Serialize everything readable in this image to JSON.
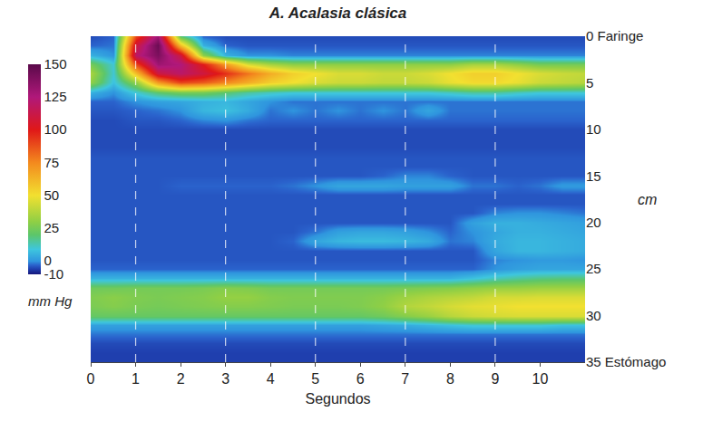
{
  "chart_data": {
    "type": "heatmap",
    "title": "A. Acalasia clásica",
    "x_label": "Segundos",
    "y_label": "cm",
    "colorbar_label": "mm Hg",
    "x": [
      0,
      0.5,
      1,
      1.5,
      2,
      2.5,
      3,
      3.5,
      4,
      4.5,
      5,
      5.5,
      6,
      6.5,
      7,
      7.5,
      8,
      8.5,
      9,
      9.5,
      10,
      10.5,
      11
    ],
    "y": [
      0,
      1,
      2,
      3,
      4,
      5,
      6,
      7,
      8,
      9,
      10,
      11,
      12,
      13,
      14,
      15,
      16,
      17,
      18,
      19,
      20,
      21,
      22,
      23,
      24,
      25,
      26,
      27,
      28,
      29,
      30,
      31,
      32,
      33,
      34,
      35
    ],
    "z": [
      [
        -5,
        -3,
        90,
        130,
        20,
        -3,
        -5,
        -5,
        -5,
        -5,
        -5,
        -5,
        -5,
        -5,
        -5,
        -5,
        -5,
        -5,
        -5,
        -5,
        -5,
        -5,
        -5
      ],
      [
        -3,
        -2,
        110,
        145,
        60,
        5,
        -3,
        -4,
        -4,
        -4,
        -4,
        -4,
        -4,
        -4,
        -4,
        -4,
        -4,
        -4,
        -4,
        -4,
        -4,
        -4,
        -4
      ],
      [
        5,
        0,
        120,
        140,
        110,
        30,
        5,
        0,
        0,
        -1,
        -1,
        -1,
        -1,
        -1,
        -1,
        -1,
        -1,
        -1,
        -1,
        -1,
        -1,
        -1,
        -1
      ],
      [
        25,
        10,
        90,
        130,
        125,
        100,
        70,
        45,
        35,
        30,
        30,
        30,
        30,
        30,
        30,
        30,
        30,
        35,
        35,
        30,
        25,
        25,
        25
      ],
      [
        35,
        10,
        60,
        110,
        120,
        110,
        95,
        80,
        65,
        55,
        50,
        45,
        45,
        42,
        42,
        45,
        50,
        55,
        55,
        50,
        45,
        42,
        40
      ],
      [
        30,
        8,
        30,
        70,
        90,
        85,
        75,
        65,
        55,
        50,
        45,
        42,
        42,
        40,
        40,
        42,
        48,
        52,
        52,
        48,
        42,
        40,
        38
      ],
      [
        5,
        0,
        10,
        20,
        25,
        25,
        20,
        15,
        12,
        10,
        10,
        10,
        10,
        10,
        10,
        10,
        12,
        15,
        15,
        12,
        10,
        10,
        10
      ],
      [
        -3,
        -3,
        0,
        2,
        3,
        5,
        6,
        3,
        0,
        -2,
        -2,
        -2,
        -2,
        -2,
        -2,
        -2,
        -2,
        -2,
        -2,
        -2,
        -2,
        -2,
        -2
      ],
      [
        -4,
        -4,
        -3,
        -2,
        0,
        6,
        8,
        4,
        -2,
        0,
        -2,
        0,
        -2,
        0,
        -2,
        3,
        -2,
        -2,
        -2,
        -2,
        -2,
        -2,
        -2
      ],
      [
        -5,
        -5,
        -4,
        -4,
        -3,
        -1,
        0,
        -2,
        -3,
        -3,
        -3,
        -3,
        -3,
        -3,
        -3,
        -3,
        -3,
        -3,
        -3,
        -3,
        -3,
        -3,
        -3
      ],
      [
        -5,
        -5,
        -5,
        -5,
        -5,
        -5,
        -5,
        -5,
        -5,
        -5,
        -5,
        -5,
        -5,
        -5,
        -5,
        -5,
        -5,
        -5,
        -5,
        -5,
        -5,
        -5,
        -5
      ],
      [
        -5,
        -5,
        -5,
        -5,
        -5,
        -5,
        -5,
        -5,
        -5,
        -5,
        -5,
        -5,
        -5,
        -5,
        -5,
        -5,
        -5,
        -5,
        -5,
        -5,
        -5,
        -5,
        -5
      ],
      [
        -5,
        -5,
        -5,
        -5,
        -5,
        -5,
        -5,
        -5,
        -5,
        -5,
        -5,
        -5,
        -5,
        -5,
        -5,
        -5,
        -5,
        -5,
        -5,
        -5,
        -5,
        -5,
        -5
      ],
      [
        -4,
        -4,
        -4,
        -4,
        -4,
        -4,
        -4,
        -4,
        -4,
        -4,
        -4,
        -4,
        -4,
        -4,
        -4,
        -4,
        -4,
        -4,
        -4,
        -4,
        -4,
        -4,
        -4
      ],
      [
        -4,
        -4,
        -4,
        -4,
        -4,
        -4,
        -4,
        -4,
        -4,
        -4,
        -4,
        -4,
        -4,
        -4,
        -4,
        -4,
        -4,
        -4,
        -4,
        -4,
        -4,
        -4,
        -4
      ],
      [
        -4,
        -4,
        -4,
        -4,
        -4,
        -4,
        -4,
        -4,
        -4,
        -4,
        -4,
        -4,
        -4,
        -3,
        -1,
        -1,
        -3,
        -4,
        -4,
        -4,
        -4,
        -4,
        -4
      ],
      [
        -4,
        -4,
        -4,
        -4,
        -3,
        -3,
        -3,
        -3,
        -3,
        -2,
        0,
        3,
        3,
        3,
        2,
        2,
        2,
        -2,
        -2,
        -3,
        -2,
        1,
        1
      ],
      [
        -4,
        -4,
        -4,
        -4,
        -4,
        -4,
        -4,
        -4,
        -4,
        -4,
        -4,
        -4,
        -4,
        -4,
        -4,
        -4,
        -4,
        -4,
        -4,
        -4,
        -4,
        -4,
        -4
      ],
      [
        -4,
        -4,
        -4,
        -4,
        -4,
        -4,
        -4,
        -4,
        -4,
        -4,
        -4,
        -4,
        -4,
        -4,
        -4,
        -4,
        -4,
        -4,
        -4,
        -4,
        -4,
        -4,
        -4
      ],
      [
        -4,
        -4,
        -4,
        -4,
        -4,
        -4,
        -4,
        -4,
        -4,
        -4,
        -4,
        -4,
        -4,
        -4,
        -4,
        -4,
        -4,
        -4,
        -1,
        0,
        0,
        -1,
        -2
      ],
      [
        -4,
        -4,
        -4,
        -4,
        -4,
        -4,
        -4,
        -4,
        -4,
        -4,
        -4,
        -4,
        -4,
        -4,
        -4,
        -4,
        -4,
        2,
        5,
        5,
        4,
        3,
        2
      ],
      [
        -4,
        -4,
        -4,
        -4,
        -4,
        -4,
        -4,
        -4,
        -4,
        -4,
        -2,
        2,
        3,
        3,
        2,
        0,
        -3,
        0,
        3,
        5,
        5,
        4,
        3
      ],
      [
        -4,
        -4,
        -4,
        -4,
        -4,
        -4,
        -4,
        -4,
        -4,
        -3,
        3,
        6,
        7,
        7,
        6,
        4,
        -2,
        -1,
        4,
        6,
        6,
        5,
        4
      ],
      [
        -4,
        -4,
        -4,
        -4,
        -4,
        -4,
        -4,
        -4,
        -4,
        -4,
        -4,
        -4,
        -4,
        -4,
        -4,
        -4,
        -4,
        -4,
        3,
        6,
        6,
        5,
        4
      ],
      [
        -4,
        -4,
        -4,
        -4,
        -4,
        -4,
        -4,
        -4,
        -4,
        -4,
        -4,
        -4,
        -4,
        -4,
        -4,
        -4,
        -4,
        -4,
        -1,
        0,
        1,
        1,
        0
      ],
      [
        -3,
        -3,
        -3,
        -3,
        -3,
        -3,
        -3,
        -3,
        -3,
        -3,
        -3,
        -3,
        -3,
        -3,
        -3,
        -3,
        -3,
        -3,
        0,
        2,
        3,
        3,
        3
      ],
      [
        5,
        5,
        5,
        5,
        5,
        5,
        5,
        5,
        5,
        5,
        5,
        5,
        5,
        5,
        5,
        5,
        5,
        8,
        12,
        15,
        17,
        18,
        18
      ],
      [
        24,
        24,
        25,
        25,
        25,
        26,
        28,
        27,
        25,
        25,
        25,
        25,
        25,
        25,
        26,
        27,
        28,
        30,
        32,
        32,
        33,
        33,
        33
      ],
      [
        27,
        29,
        27,
        26,
        27,
        28,
        31,
        31,
        28,
        27,
        27,
        27,
        27,
        29,
        33,
        36,
        38,
        40,
        44,
        44,
        45,
        45,
        45
      ],
      [
        26,
        28,
        26,
        25,
        26,
        27,
        28,
        28,
        27,
        26,
        26,
        26,
        27,
        30,
        37,
        40,
        44,
        47,
        48,
        50,
        50,
        50,
        50
      ],
      [
        22,
        22,
        22,
        22,
        22,
        22,
        22,
        22,
        22,
        22,
        22,
        22,
        22,
        24,
        28,
        32,
        38,
        42,
        44,
        45,
        45,
        45,
        45
      ],
      [
        2,
        2,
        2,
        2,
        2,
        2,
        2,
        2,
        2,
        2,
        2,
        2,
        2,
        3,
        4,
        6,
        8,
        10,
        10,
        10,
        10,
        8,
        8
      ],
      [
        -2,
        -2,
        -2,
        -2,
        -2,
        -2,
        -2,
        -2,
        -2,
        -2,
        -2,
        -2,
        -2,
        -2,
        -2,
        -2,
        -2,
        -2,
        -2,
        -2,
        -2,
        -2,
        -2
      ],
      [
        -5,
        -5,
        -5,
        -5,
        -5,
        -5,
        -5,
        -5,
        -5,
        -5,
        -5,
        -5,
        -5,
        -5,
        -5,
        -5,
        -5,
        -5,
        -5,
        -5,
        -5,
        -5,
        -5
      ],
      [
        -6,
        -6,
        -6,
        -6,
        -6,
        -6,
        -6,
        -6,
        -6,
        -6,
        -6,
        -6,
        -6,
        -6,
        -6,
        -6,
        -6,
        -6,
        -6,
        -6,
        -6,
        -6,
        -6
      ],
      [
        -6,
        -6,
        -6,
        -6,
        -6,
        -6,
        -6,
        -6,
        -6,
        -6,
        -6,
        -6,
        -6,
        -6,
        -6,
        -6,
        -6,
        -6,
        -6,
        -6,
        -6,
        -6,
        -6
      ]
    ],
    "xlim": [
      0,
      11
    ],
    "xticks": [
      0,
      1,
      2,
      3,
      4,
      5,
      6,
      7,
      8,
      9,
      10
    ],
    "ylim": [
      35,
      0
    ],
    "yticks": [
      {
        "value": 0,
        "label": "0 Faringe"
      },
      5,
      10,
      15,
      20,
      25,
      30,
      {
        "value": 35,
        "label": "35 Estómago"
      }
    ],
    "colorbar_range": [
      -10,
      150
    ],
    "colorbar_ticks": [
      -10,
      0,
      25,
      50,
      75,
      100,
      125,
      150
    ],
    "vlines": [
      1,
      3,
      5,
      7,
      9
    ],
    "grid": false
  }
}
